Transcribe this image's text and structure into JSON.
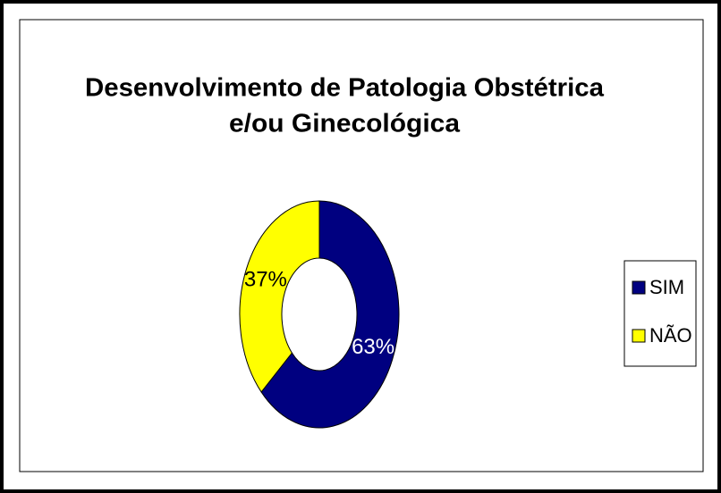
{
  "chart_data": {
    "type": "donut",
    "title": [
      "Desenvolvimento de Patologia Obstétrica",
      "e/ou Ginecológica"
    ],
    "categories": [
      "SIM",
      "NÃO"
    ],
    "values": [
      63,
      37
    ],
    "value_labels": [
      "63%",
      "37%"
    ],
    "colors": [
      "#000080",
      "#ffff00"
    ],
    "label_colors": [
      "#ffffff",
      "#000000"
    ],
    "legend": "right"
  }
}
